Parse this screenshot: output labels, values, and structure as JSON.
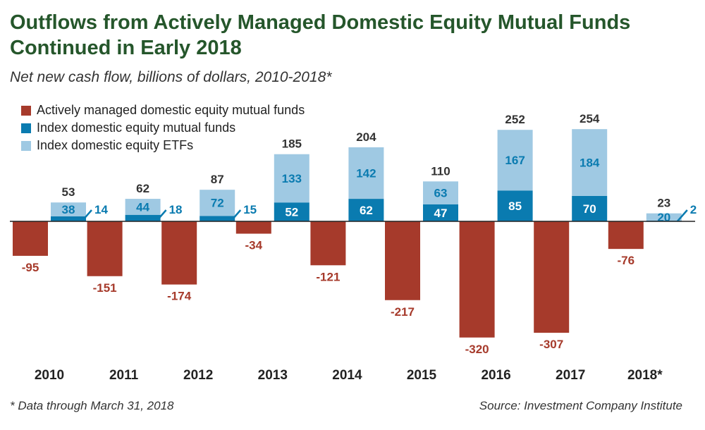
{
  "chart_data": {
    "type": "bar",
    "title": "Outflows from Actively Managed Domestic Equity Mutual Funds Continued in Early 2018",
    "subtitle": "Net new cash flow, billions of dollars, 2010-2018*",
    "categories": [
      "2010",
      "2011",
      "2012",
      "2013",
      "2014",
      "2015",
      "2016",
      "2017",
      "2018*"
    ],
    "series": [
      {
        "name": "Actively managed domestic equity mutual funds",
        "color": "#a63a2b",
        "values": [
          -95,
          -151,
          -174,
          -34,
          -121,
          -217,
          -320,
          -307,
          -76
        ]
      },
      {
        "name": "Index domestic equity mutual funds",
        "color": "#0a7bb0",
        "values": [
          14,
          18,
          15,
          52,
          62,
          47,
          85,
          70,
          2
        ]
      },
      {
        "name": "Index domestic equity ETFs",
        "color": "#9fc9e3",
        "values": [
          38,
          44,
          72,
          133,
          142,
          63,
          167,
          184,
          20
        ]
      }
    ],
    "totals": [
      53,
      62,
      87,
      185,
      204,
      110,
      252,
      254,
      23
    ],
    "stacked_series": [
      1,
      2
    ],
    "ylim": [
      -340,
      270
    ],
    "grid": false,
    "legend_position": "top-left"
  },
  "footnote": "* Data through March 31, 2018",
  "source": "Source: Investment Company Institute",
  "colors": {
    "title": "#25562b",
    "total_label": "#333333",
    "axis_label": "#222222"
  }
}
